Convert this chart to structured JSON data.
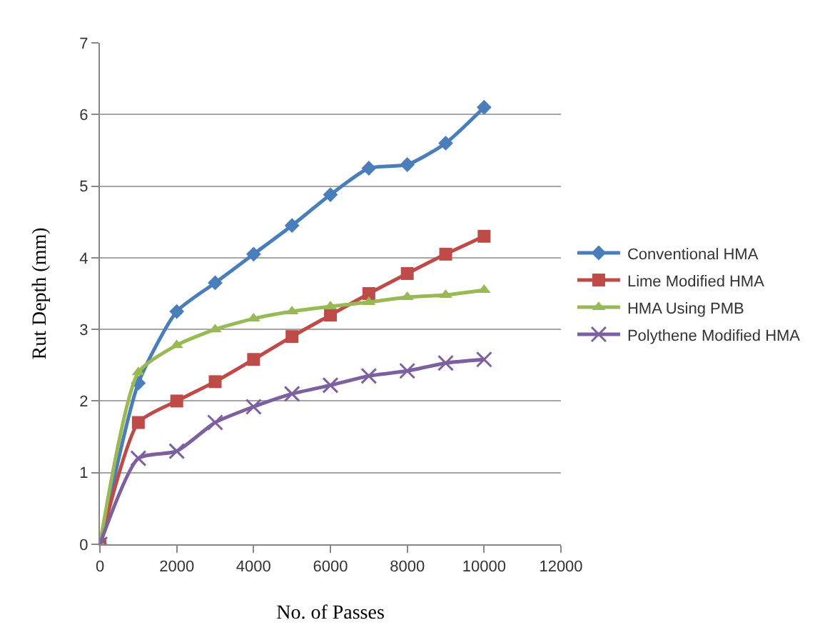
{
  "chart_data": {
    "type": "line",
    "xlabel": "No. of Passes",
    "ylabel": "Rut Depth (mm)",
    "x": [
      0,
      1000,
      2000,
      3000,
      4000,
      5000,
      6000,
      7000,
      8000,
      9000,
      10000
    ],
    "xlim": [
      0,
      12000
    ],
    "xticks": [
      0,
      2000,
      4000,
      6000,
      8000,
      10000,
      12000
    ],
    "ylim": [
      0,
      7
    ],
    "yticks": [
      0,
      1,
      2,
      3,
      4,
      5,
      6,
      7
    ],
    "grid": "y",
    "legend": "right",
    "series": [
      {
        "name": "Conventional HMA",
        "color": "#4a7ebb",
        "marker": "diamond",
        "values": [
          0,
          2.25,
          3.25,
          3.65,
          4.05,
          4.45,
          4.88,
          5.25,
          5.3,
          5.6,
          6.1
        ]
      },
      {
        "name": "Lime Modified HMA",
        "color": "#be4b48",
        "marker": "square",
        "values": [
          0,
          1.7,
          2.0,
          2.27,
          2.58,
          2.9,
          3.2,
          3.5,
          3.78,
          4.05,
          4.3
        ]
      },
      {
        "name": "HMA Using PMB",
        "color": "#98b954",
        "marker": "triangle",
        "values": [
          0,
          2.4,
          2.78,
          3.0,
          3.15,
          3.25,
          3.32,
          3.38,
          3.45,
          3.48,
          3.55
        ]
      },
      {
        "name": "Polythene Modified HMA",
        "color": "#7d60a0",
        "marker": "cross",
        "values": [
          0,
          1.2,
          1.3,
          1.7,
          1.92,
          2.1,
          2.22,
          2.35,
          2.42,
          2.53,
          2.58
        ]
      }
    ]
  }
}
